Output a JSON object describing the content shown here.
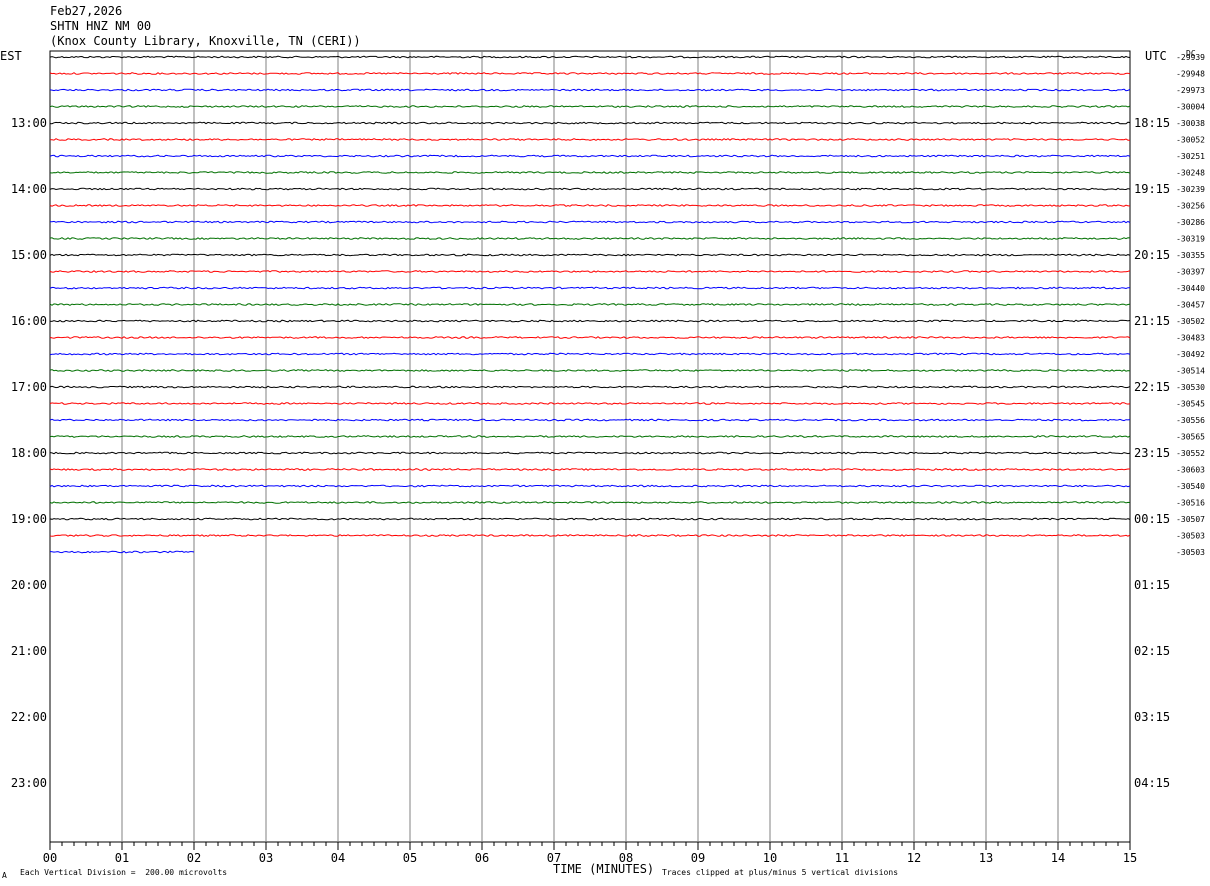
{
  "header": {
    "date": "Feb27,2026",
    "station": "SHTN HNZ NM 00",
    "location": "(Knox County Library, Knoxville, TN (CERI))"
  },
  "axes": {
    "left_zone": "EST",
    "right_zone": "UTC",
    "dc_label": "DC",
    "xlabel": "TIME (MINUTES)",
    "x_ticks": [
      "00",
      "01",
      "02",
      "03",
      "04",
      "05",
      "06",
      "07",
      "08",
      "09",
      "10",
      "11",
      "12",
      "13",
      "14",
      "15"
    ],
    "left_hours": [
      "13:00",
      "14:00",
      "15:00",
      "16:00",
      "17:00",
      "18:00",
      "19:00",
      "20:00",
      "21:00",
      "22:00",
      "23:00"
    ],
    "right_hours": [
      "18:15",
      "19:15",
      "20:15",
      "21:15",
      "22:15",
      "23:15",
      "00:15",
      "01:15",
      "02:15",
      "03:15",
      "04:15"
    ]
  },
  "footer": {
    "mark": "A",
    "vertical_division": "Each Vertical Division =  200.00 microvolts",
    "clip_note": "Traces clipped at plus/minus 5 vertical divisions"
  },
  "colors": {
    "cycle": [
      "#000000",
      "#ff0000",
      "#0000ff",
      "#007000"
    ],
    "grid": "#808080"
  },
  "chart_data": {
    "type": "line",
    "x_range_minutes": [
      0,
      15
    ],
    "rows_per_hour": 4,
    "dc_offsets": [
      "-29939",
      "-29948",
      "-29973",
      "-30004",
      "-30038",
      "-30052",
      "-30251",
      "-30248",
      "-30239",
      "-30256",
      "-30286",
      "-30319",
      "-30355",
      "-30397",
      "-30440",
      "-30457",
      "-30502",
      "-30483",
      "-30492",
      "-30514",
      "-30530",
      "-30545",
      "-30556",
      "-30565",
      "-30552",
      "-30603",
      "-30540",
      "-30516",
      "-30507",
      "-30503",
      "-30503"
    ],
    "partial_last_trace_minutes": 2.0
  }
}
